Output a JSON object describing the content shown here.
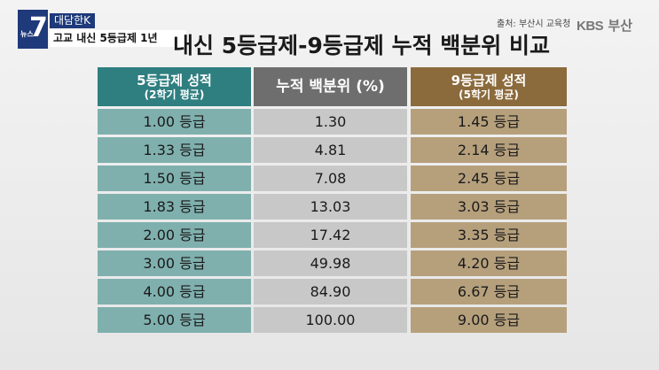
{
  "badge": {
    "number": "7",
    "number_prefix": "뉴스",
    "tag": "대담한K",
    "caption": "고교 내신 5등급제 1년"
  },
  "source": "출처: 부산시 교육청",
  "logo": {
    "brand": "KBS",
    "region": "부산"
  },
  "title": "내신 5등급제-9등급제 누적 백분위 비교",
  "table": {
    "headers": [
      {
        "line1": "5등급제 성적",
        "line2": "(2학기 평균)"
      },
      {
        "line1": "누적 백분위 (%)",
        "line2": ""
      },
      {
        "line1": "9등급제 성적",
        "line2": "(5학기 평균)"
      }
    ],
    "rows": [
      [
        "1.00 등급",
        "1.30",
        "1.45 등급"
      ],
      [
        "1.33 등급",
        "4.81",
        "2.14 등급"
      ],
      [
        "1.50 등급",
        "7.08",
        "2.45 등급"
      ],
      [
        "1.83 등급",
        "13.03",
        "3.03 등급"
      ],
      [
        "2.00 등급",
        "17.42",
        "3.35 등급"
      ],
      [
        "3.00 등급",
        "49.98",
        "4.20 등급"
      ],
      [
        "4.00 등급",
        "84.90",
        "6.67 등급"
      ],
      [
        "5.00 등급",
        "100.00",
        "9.00 등급"
      ]
    ]
  }
}
